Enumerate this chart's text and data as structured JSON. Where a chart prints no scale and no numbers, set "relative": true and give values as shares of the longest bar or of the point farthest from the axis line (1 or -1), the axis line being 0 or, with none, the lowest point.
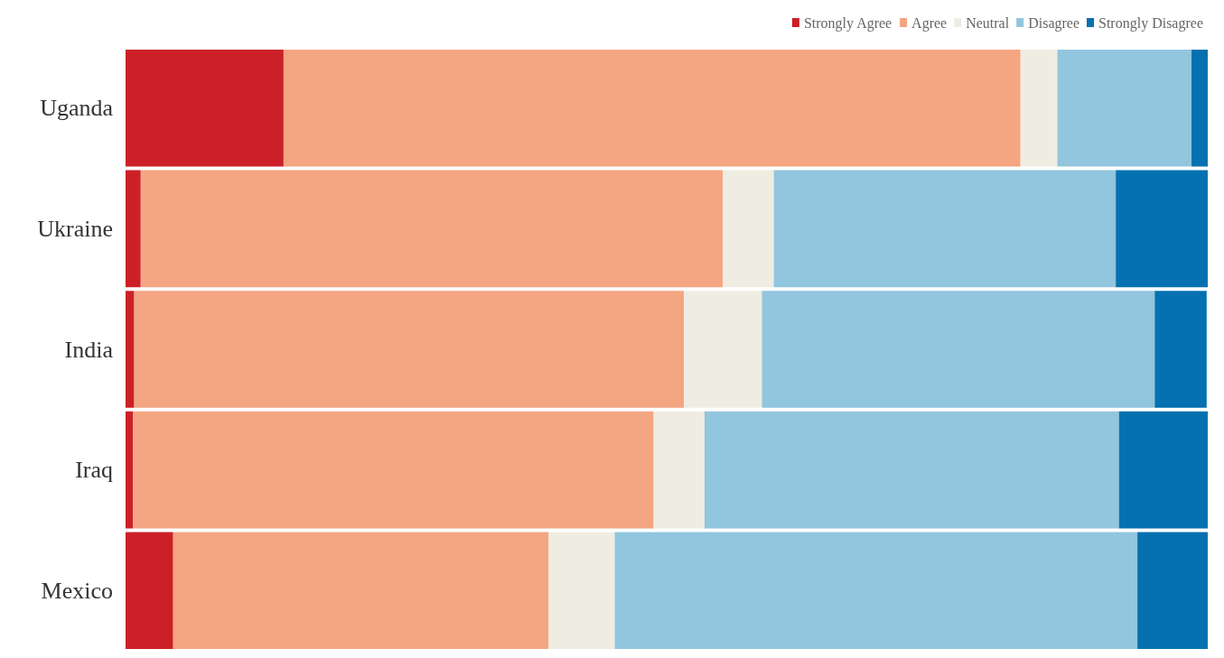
{
  "chart_data": {
    "type": "bar",
    "orientation": "horizontal",
    "stacked": true,
    "relative": true,
    "legend": "top right",
    "categories": [
      "Uganda",
      "Ukraine",
      "India",
      "Iraq",
      "Mexico"
    ],
    "series": [
      {
        "name": "Strongly Agree",
        "color": "#cb2027",
        "values": [
          0.146,
          0.014,
          0.008,
          0.007,
          0.044
        ]
      },
      {
        "name": "Agree",
        "color": "#f4a582",
        "values": [
          0.681,
          0.538,
          0.508,
          0.481,
          0.347
        ]
      },
      {
        "name": "Neutral",
        "color": "#efede2",
        "values": [
          0.034,
          0.047,
          0.072,
          0.047,
          0.061
        ]
      },
      {
        "name": "Disagree",
        "color": "#92c5de",
        "values": [
          0.124,
          0.316,
          0.363,
          0.383,
          0.483
        ]
      },
      {
        "name": "Strongly Disagree",
        "color": "#0571b0",
        "values": [
          0.015,
          0.085,
          0.048,
          0.082,
          0.065
        ]
      }
    ]
  }
}
